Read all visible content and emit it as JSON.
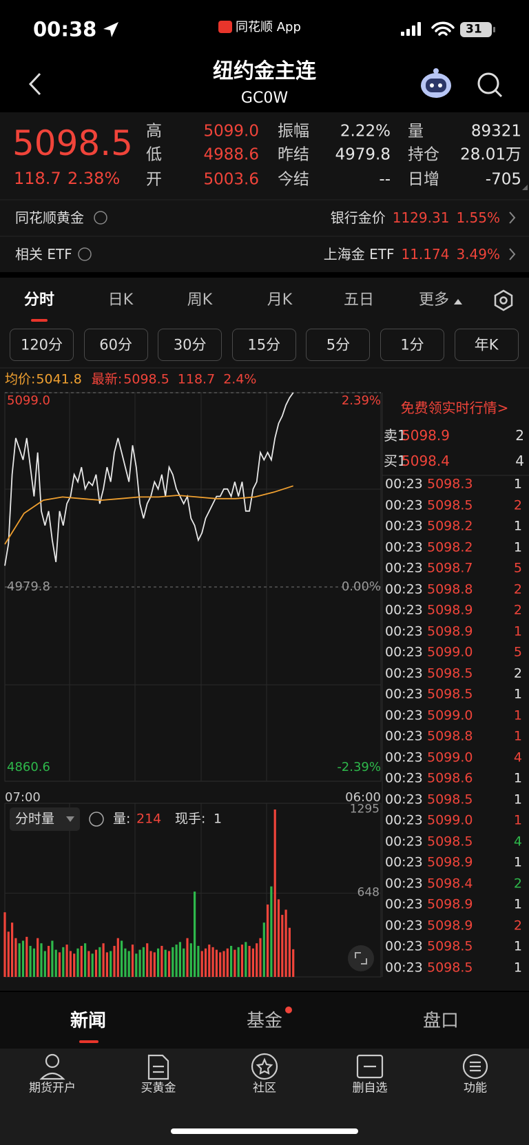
{
  "status_bar": {
    "time": "00:38",
    "app": "同花顺 App",
    "battery": "31"
  },
  "header": {
    "title": "纽约金主连",
    "code": "GC0W"
  },
  "quote": {
    "price": "5098.5",
    "change": "118.7",
    "change_pct": "2.38%",
    "fields": [
      {
        "label": "高",
        "value": "5099.0",
        "color": "#f0443a"
      },
      {
        "label": "振幅",
        "value": "2.22%",
        "color": "#e6e6e6"
      },
      {
        "label": "量",
        "value": "89321",
        "color": "#e6e6e6"
      },
      {
        "label": "低",
        "value": "4988.6",
        "color": "#f0443a"
      },
      {
        "label": "昨结",
        "value": "4979.8",
        "color": "#e6e6e6"
      },
      {
        "label": "持仓",
        "value": "28.01万",
        "color": "#e6e6e6"
      },
      {
        "label": "开",
        "value": "5003.6",
        "color": "#f0443a"
      },
      {
        "label": "今结",
        "value": "--",
        "color": "#e6e6e6"
      },
      {
        "label": "日增",
        "value": "-705",
        "color": "#e6e6e6"
      }
    ]
  },
  "links": [
    {
      "label": "同花顺黄金",
      "item": "银行金价",
      "price": "1129.31",
      "pct": "1.55%"
    },
    {
      "label": "相关 ETF",
      "item": "上海金 ETF",
      "price": "11.174",
      "pct": "3.49%"
    }
  ],
  "tabs": [
    "分时",
    "日K",
    "周K",
    "月K",
    "五日",
    "更多"
  ],
  "periods": [
    "120分",
    "60分",
    "30分",
    "15分",
    "5分",
    "1分",
    "年K"
  ],
  "info": {
    "avg_label": "均价:",
    "avg": "5041.8",
    "last_label": "最新:",
    "last": "5098.5",
    "change": "118.7",
    "change_pct": "2.4%"
  },
  "chart": {
    "type": "line",
    "price_color": "#e8e8e8",
    "avg_color": "#f0a030",
    "price": [
      4992.8,
      5006.3,
      5048.8,
      5071.2,
      5064.5,
      5057.8,
      5071.2,
      5053.3,
      5035.4,
      5062.3,
      5026.4,
      5017.5,
      5026.4,
      5008.5,
      4995.1,
      5026.4,
      5017.5,
      5030.9,
      5035.4,
      5048.8,
      5044.3,
      5053.3,
      5039.9,
      5044.3,
      5042.1,
      5048.8,
      5030.9,
      5039.9,
      5053.3,
      5044.3,
      5062.3,
      5071.2,
      5062.3,
      5053.3,
      5044.3,
      5066.7,
      5053.3,
      5030.9,
      5021.9,
      5030.9,
      5035.4,
      5044.3,
      5039.9,
      5048.8,
      5035.4,
      5053.3,
      5048.8,
      5039.9,
      5035.4,
      5030.9,
      5035.4,
      5021.9,
      5017.5,
      5008.5,
      5013.0,
      5021.9,
      5026.4,
      5030.9,
      5035.4,
      5035.4,
      5039.9,
      5039.9,
      5035.4,
      5044.3,
      5035.4,
      5044.3,
      5026.4,
      5026.4,
      5039.9,
      5044.3,
      5062.3,
      5057.8,
      5062.3,
      5057.8,
      5071.2,
      5080.2,
      5084.7,
      5091.4,
      5095.9,
      5099.0
    ],
    "avg": [
      5006,
      5025,
      5033,
      5035,
      5034,
      5033,
      5034,
      5035,
      5035,
      5036,
      5035,
      5034,
      5034,
      5035,
      5038,
      5041.8
    ],
    "ylim": [
      4860.6,
      5099.0
    ],
    "yticks": [
      {
        "value": 5099.0,
        "label": "5099.0"
      },
      {
        "value": 4979.8,
        "label": "4979.8"
      },
      {
        "value": 4860.6,
        "label": "4860.6"
      }
    ],
    "pct_labels": [
      "2.39%",
      "0.00%",
      "-2.39%"
    ],
    "x_labels": [
      "07:00",
      "06:00"
    ]
  },
  "volume": {
    "type": "bar",
    "menu": "分时量",
    "vol_label": "量:",
    "vol": "214",
    "hand_label": "现手:",
    "hand": "1",
    "up_color": "#f0443a",
    "down_color": "#2eb84b",
    "values": [
      500,
      350,
      420,
      300,
      260,
      280,
      310,
      240,
      220,
      300,
      260,
      200,
      240,
      280,
      210,
      190,
      230,
      250,
      200,
      180,
      220,
      240,
      260,
      200,
      180,
      210,
      230,
      260,
      190,
      200,
      240,
      300,
      280,
      220,
      200,
      250,
      180,
      210,
      230,
      260,
      200,
      190,
      220,
      240,
      210,
      200,
      230,
      250,
      270,
      220,
      300,
      260,
      660,
      240,
      200,
      220,
      250,
      230,
      210,
      190,
      200,
      220,
      240,
      210,
      230,
      250,
      270,
      240,
      220,
      260,
      300,
      420,
      560,
      700,
      1295,
      600,
      480,
      520,
      380,
      214
    ],
    "ylim": [
      0,
      1295
    ],
    "yticks": [
      648,
      1295
    ]
  },
  "order_book": {
    "promo": "免费领实时行情>",
    "levels": [
      {
        "label": "卖1",
        "price": "5098.9",
        "qty": "2"
      },
      {
        "label": "买1",
        "price": "5098.4",
        "qty": "4"
      }
    ],
    "ticks": [
      {
        "time": "00:23",
        "price": "5098.3",
        "qty": "1",
        "color": "#e6e6e6"
      },
      {
        "time": "00:23",
        "price": "5098.5",
        "qty": "2",
        "color": "#f0443a"
      },
      {
        "time": "00:23",
        "price": "5098.2",
        "qty": "1",
        "color": "#e6e6e6"
      },
      {
        "time": "00:23",
        "price": "5098.2",
        "qty": "1",
        "color": "#e6e6e6"
      },
      {
        "time": "00:23",
        "price": "5098.7",
        "qty": "5",
        "color": "#f0443a"
      },
      {
        "time": "00:23",
        "price": "5098.8",
        "qty": "2",
        "color": "#f0443a"
      },
      {
        "time": "00:23",
        "price": "5098.9",
        "qty": "2",
        "color": "#f0443a"
      },
      {
        "time": "00:23",
        "price": "5098.9",
        "qty": "1",
        "color": "#f0443a"
      },
      {
        "time": "00:23",
        "price": "5099.0",
        "qty": "5",
        "color": "#f0443a"
      },
      {
        "time": "00:23",
        "price": "5098.5",
        "qty": "2",
        "color": "#e6e6e6"
      },
      {
        "time": "00:23",
        "price": "5098.5",
        "qty": "1",
        "color": "#e6e6e6"
      },
      {
        "time": "00:23",
        "price": "5099.0",
        "qty": "1",
        "color": "#f0443a"
      },
      {
        "time": "00:23",
        "price": "5098.8",
        "qty": "1",
        "color": "#f0443a"
      },
      {
        "time": "00:23",
        "price": "5099.0",
        "qty": "4",
        "color": "#f0443a"
      },
      {
        "time": "00:23",
        "price": "5098.6",
        "qty": "1",
        "color": "#e6e6e6"
      },
      {
        "time": "00:23",
        "price": "5098.5",
        "qty": "1",
        "color": "#e6e6e6"
      },
      {
        "time": "00:23",
        "price": "5099.0",
        "qty": "1",
        "color": "#f0443a"
      },
      {
        "time": "00:23",
        "price": "5098.5",
        "qty": "4",
        "color": "#2eb84b"
      },
      {
        "time": "00:23",
        "price": "5098.9",
        "qty": "1",
        "color": "#e6e6e6"
      },
      {
        "time": "00:23",
        "price": "5098.4",
        "qty": "2",
        "color": "#2eb84b"
      },
      {
        "time": "00:23",
        "price": "5098.9",
        "qty": "1",
        "color": "#e6e6e6"
      },
      {
        "time": "00:23",
        "price": "5098.9",
        "qty": "2",
        "color": "#f0443a"
      },
      {
        "time": "00:23",
        "price": "5098.5",
        "qty": "1",
        "color": "#e6e6e6"
      },
      {
        "time": "00:23",
        "price": "5098.5",
        "qty": "1",
        "color": "#e6e6e6"
      }
    ]
  },
  "bottom_tabs": [
    "新闻",
    "基金",
    "盘口"
  ],
  "nav": [
    "期货开户",
    "买黄金",
    "社区",
    "删自选",
    "功能"
  ]
}
